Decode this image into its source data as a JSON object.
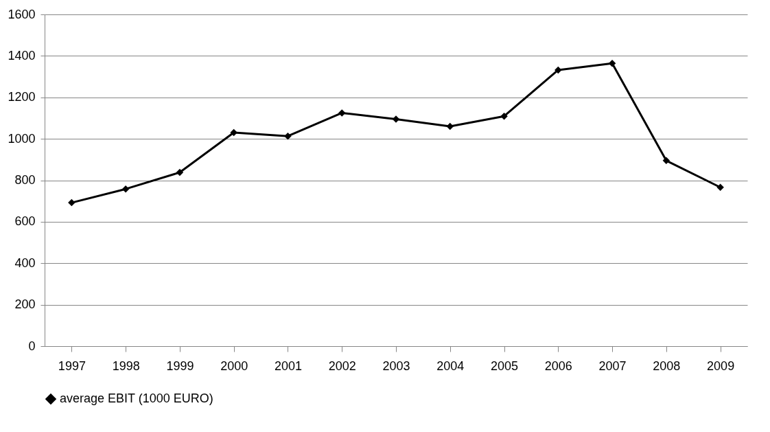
{
  "chart_data": {
    "type": "line",
    "categories": [
      "1997",
      "1998",
      "1999",
      "2000",
      "2001",
      "2002",
      "2003",
      "2004",
      "2005",
      "2006",
      "2007",
      "2008",
      "2009"
    ],
    "series": [
      {
        "name": "average EBIT (1000 EURO)",
        "color": "#000000",
        "values": [
          692,
          758,
          838,
          1030,
          1013,
          1125,
          1095,
          1060,
          1109,
          1332,
          1364,
          895,
          766
        ]
      }
    ],
    "ylim": [
      0,
      1600
    ],
    "yticks": [
      0,
      200,
      400,
      600,
      800,
      1000,
      1200,
      1400,
      1600
    ],
    "grid": "y",
    "legend": "bottom",
    "marker": "diamond",
    "line_style": "solid"
  }
}
